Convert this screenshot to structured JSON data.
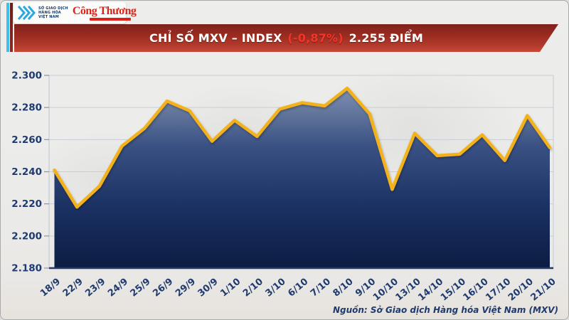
{
  "logo_bar": {
    "mxv": {
      "icon": "mxv-chevrons-icon",
      "name_lines": [
        "SỞ GIAO DỊCH",
        "HÀNG HÓA",
        "VIỆT NAM"
      ]
    },
    "congthuong": {
      "name": "Công Thương"
    }
  },
  "banner": {
    "title_prefix": "CHỈ SỐ MXV – INDEX",
    "change_percent": "(-0,87%)",
    "value_text": "2.255 ĐIỂM",
    "bg_color": "#a5311f",
    "change_color": "#f5342a"
  },
  "chart_data": {
    "type": "area",
    "title": "CHỈ SỐ MXV – INDEX (-0,87%) 2.255 ĐIỂM",
    "categories": [
      "18/9",
      "22/9",
      "23/9",
      "24/9",
      "25/9",
      "26/9",
      "29/9",
      "30/9",
      "1/10",
      "2/10",
      "3/10",
      "6/10",
      "7/10",
      "8/10",
      "9/10",
      "10/10",
      "13/10",
      "14/10",
      "15/10",
      "16/10",
      "17/10",
      "20/10",
      "21/10"
    ],
    "values": [
      2241,
      2218,
      2231,
      2256,
      2267,
      2284,
      2278,
      2259,
      2272,
      2262,
      2279,
      2283,
      2281,
      2292,
      2276,
      2229,
      2264,
      2250,
      2251,
      2263,
      2247,
      2275,
      2255
    ],
    "y_ticks": [
      2300,
      2280,
      2260,
      2240,
      2220,
      2200,
      2180
    ],
    "y_tick_labels": [
      "2.300",
      "2.280",
      "2.260",
      "2.240",
      "2.220",
      "2.200",
      "2.180"
    ],
    "ylim": [
      2180,
      2300
    ],
    "xlabel": "",
    "ylabel": "",
    "grid": true,
    "legend": "none",
    "line_color": "#f3b11c",
    "fill_gradient": [
      "#8494b2",
      "#3a5183",
      "#1b3163",
      "#0c1d42"
    ],
    "axis_label_color": "#1e3a6e",
    "grid_color": "#c9cdd6",
    "axis_line_color": "#21386b"
  },
  "footer": {
    "source": "Nguồn: Sở Giao dịch Hàng hóa Việt Nam (MXV)"
  }
}
